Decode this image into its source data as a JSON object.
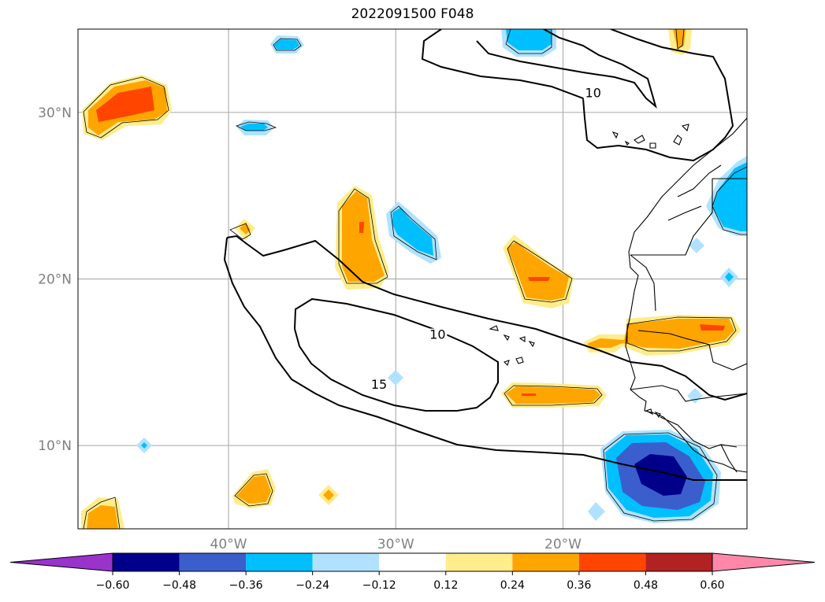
{
  "title": "2022091500 F048",
  "map": {
    "lon_range": [
      -49,
      -9
    ],
    "lat_range": [
      5,
      35
    ],
    "lat_ticks": [
      {
        "value": 30,
        "label": "30°N"
      },
      {
        "value": 20,
        "label": "20°N"
      },
      {
        "value": 10,
        "label": "10°N"
      }
    ],
    "lon_ticks": [
      {
        "value": -40,
        "label": "40°W"
      },
      {
        "value": -30,
        "label": "30°W"
      },
      {
        "value": -20,
        "label": "20°W"
      }
    ],
    "contour_labels": [
      {
        "text": "10",
        "lon": -18.2,
        "lat": 31.0
      },
      {
        "text": "10",
        "lon": -27.5,
        "lat": 16.5
      },
      {
        "text": "15",
        "lon": -31.0,
        "lat": 13.5
      }
    ]
  },
  "colorbar": {
    "colors": [
      "#9933cc",
      "#00008b",
      "#3a5fcd",
      "#00bfff",
      "#b0e2ff",
      "#ffffff",
      "#ffec8b",
      "#ffa500",
      "#ff4500",
      "#b22222",
      "#ff88aa"
    ],
    "tick_labels": [
      "−0.60",
      "−0.48",
      "−0.36",
      "−0.24",
      "−0.12",
      "0.12",
      "0.24",
      "0.36",
      "0.48",
      "0.60"
    ]
  }
}
